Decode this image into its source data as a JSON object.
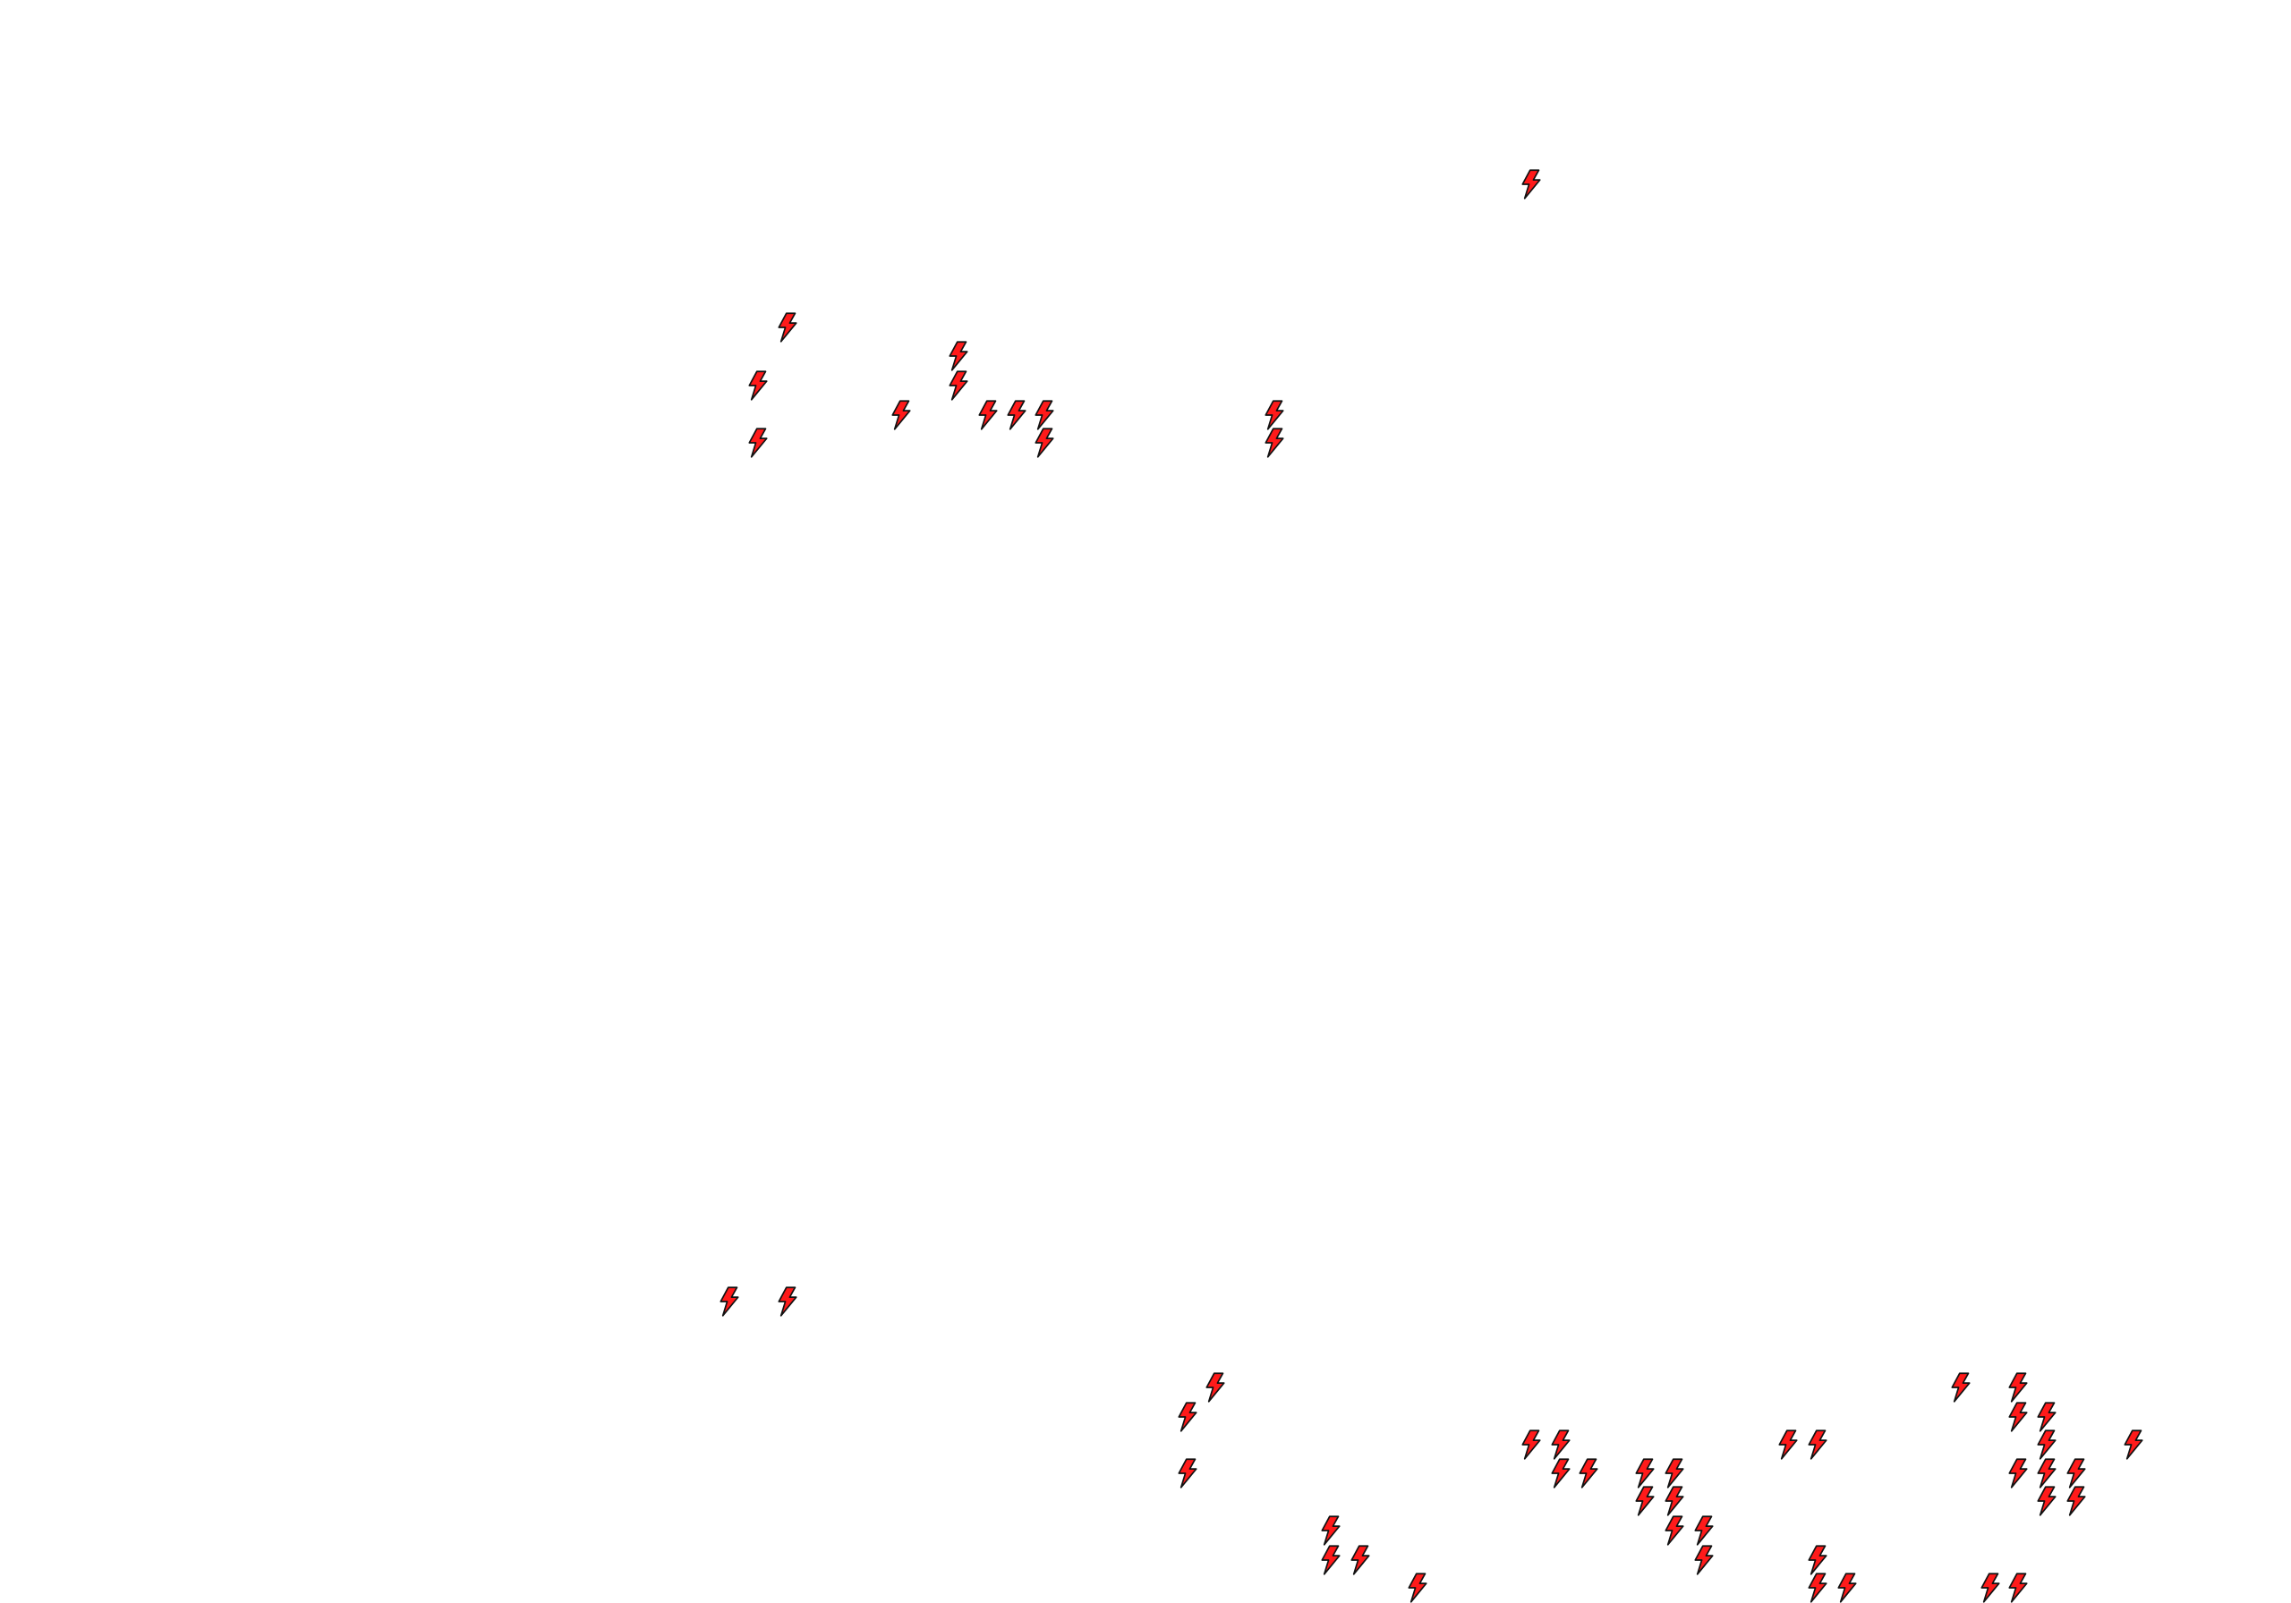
{
  "map": {
    "marker_icon": "lightning-bolt-icon",
    "marker_fill": "#ff1a1a",
    "marker_stroke": "#111111",
    "background": "#ffffff"
  }
}
